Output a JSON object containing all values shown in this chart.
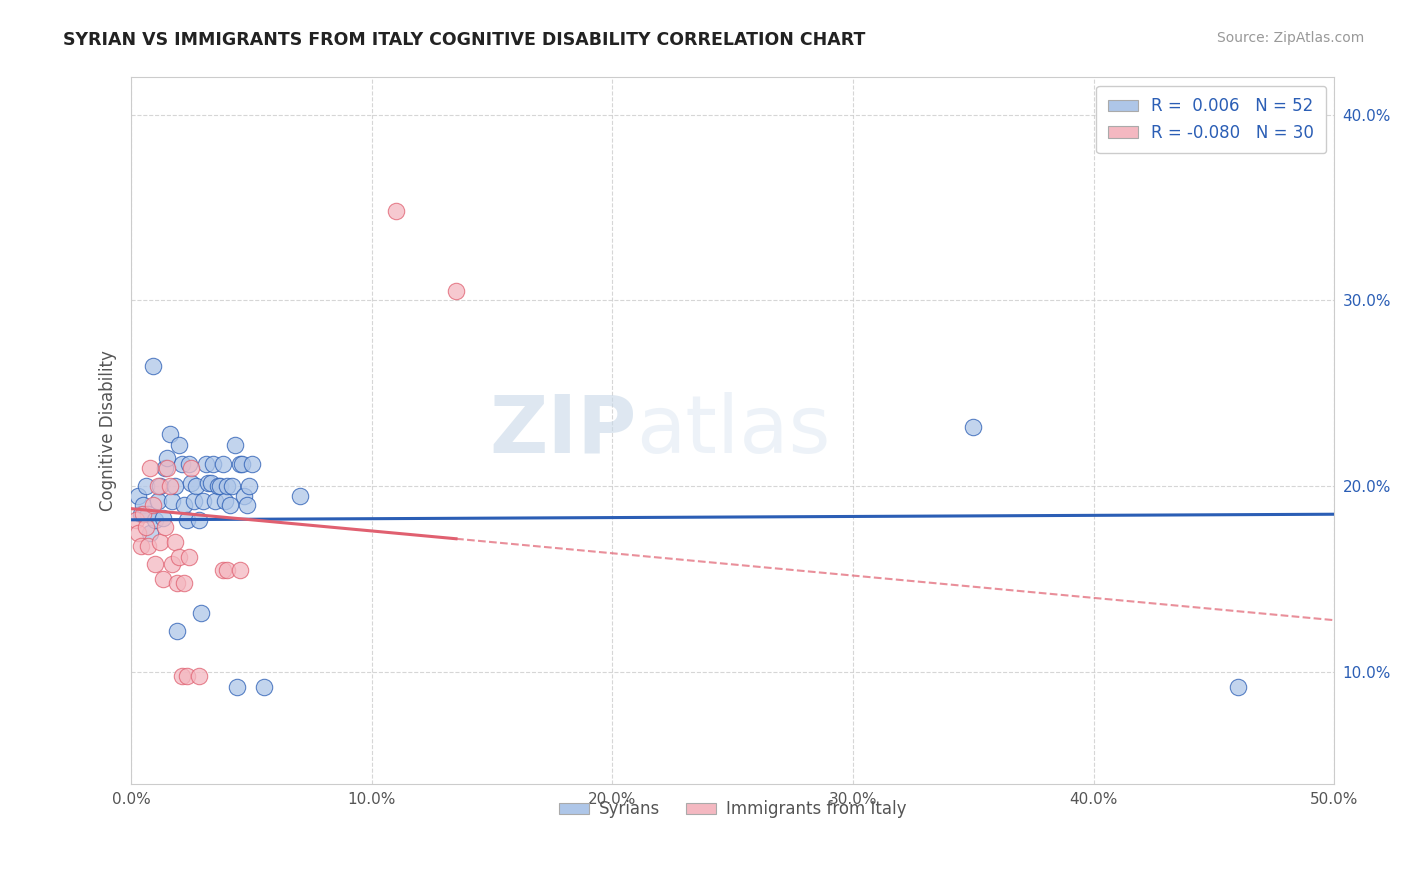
{
  "title": "SYRIAN VS IMMIGRANTS FROM ITALY COGNITIVE DISABILITY CORRELATION CHART",
  "source": "Source: ZipAtlas.com",
  "ylabel": "Cognitive Disability",
  "xlim": [
    0.0,
    0.5
  ],
  "ylim": [
    0.04,
    0.42
  ],
  "xtick_vals": [
    0.0,
    0.1,
    0.2,
    0.3,
    0.4,
    0.5
  ],
  "ytick_vals": [
    0.1,
    0.2,
    0.3,
    0.4
  ],
  "legend_label1": "R =  0.006   N = 52",
  "legend_label2": "R = -0.080   N = 30",
  "legend_color1": "#aec6e8",
  "legend_color2": "#f4b8c1",
  "line1_color": "#2b5eb5",
  "line2_color": "#e06070",
  "watermark_zip": "ZIP",
  "watermark_atlas": "atlas",
  "background_color": "#ffffff",
  "grid_color": "#cccccc",
  "legend_text_color": "#2b5eb5",
  "syrians_x": [
    0.003,
    0.004,
    0.005,
    0.006,
    0.007,
    0.008,
    0.009,
    0.01,
    0.011,
    0.012,
    0.013,
    0.014,
    0.015,
    0.016,
    0.017,
    0.018,
    0.019,
    0.02,
    0.021,
    0.022,
    0.023,
    0.024,
    0.025,
    0.026,
    0.027,
    0.028,
    0.029,
    0.03,
    0.031,
    0.032,
    0.033,
    0.034,
    0.035,
    0.036,
    0.037,
    0.038,
    0.039,
    0.04,
    0.041,
    0.042,
    0.043,
    0.044,
    0.045,
    0.046,
    0.047,
    0.048,
    0.049,
    0.05,
    0.055,
    0.07,
    0.35,
    0.46
  ],
  "syrians_y": [
    0.195,
    0.185,
    0.19,
    0.2,
    0.185,
    0.175,
    0.265,
    0.182,
    0.192,
    0.2,
    0.183,
    0.21,
    0.215,
    0.228,
    0.192,
    0.2,
    0.122,
    0.222,
    0.212,
    0.19,
    0.182,
    0.212,
    0.202,
    0.192,
    0.2,
    0.182,
    0.132,
    0.192,
    0.212,
    0.202,
    0.202,
    0.212,
    0.192,
    0.2,
    0.2,
    0.212,
    0.192,
    0.2,
    0.19,
    0.2,
    0.222,
    0.092,
    0.212,
    0.212,
    0.195,
    0.19,
    0.2,
    0.212,
    0.092,
    0.195,
    0.232,
    0.092
  ],
  "italians_x": [
    0.002,
    0.003,
    0.004,
    0.005,
    0.006,
    0.007,
    0.008,
    0.009,
    0.01,
    0.011,
    0.012,
    0.013,
    0.014,
    0.015,
    0.016,
    0.017,
    0.018,
    0.019,
    0.02,
    0.021,
    0.022,
    0.023,
    0.024,
    0.025,
    0.028,
    0.038,
    0.04,
    0.045,
    0.11,
    0.135
  ],
  "italians_y": [
    0.182,
    0.175,
    0.168,
    0.185,
    0.178,
    0.168,
    0.21,
    0.19,
    0.158,
    0.2,
    0.17,
    0.15,
    0.178,
    0.21,
    0.2,
    0.158,
    0.17,
    0.148,
    0.162,
    0.098,
    0.148,
    0.098,
    0.162,
    0.21,
    0.098,
    0.155,
    0.155,
    0.155,
    0.348,
    0.305
  ]
}
